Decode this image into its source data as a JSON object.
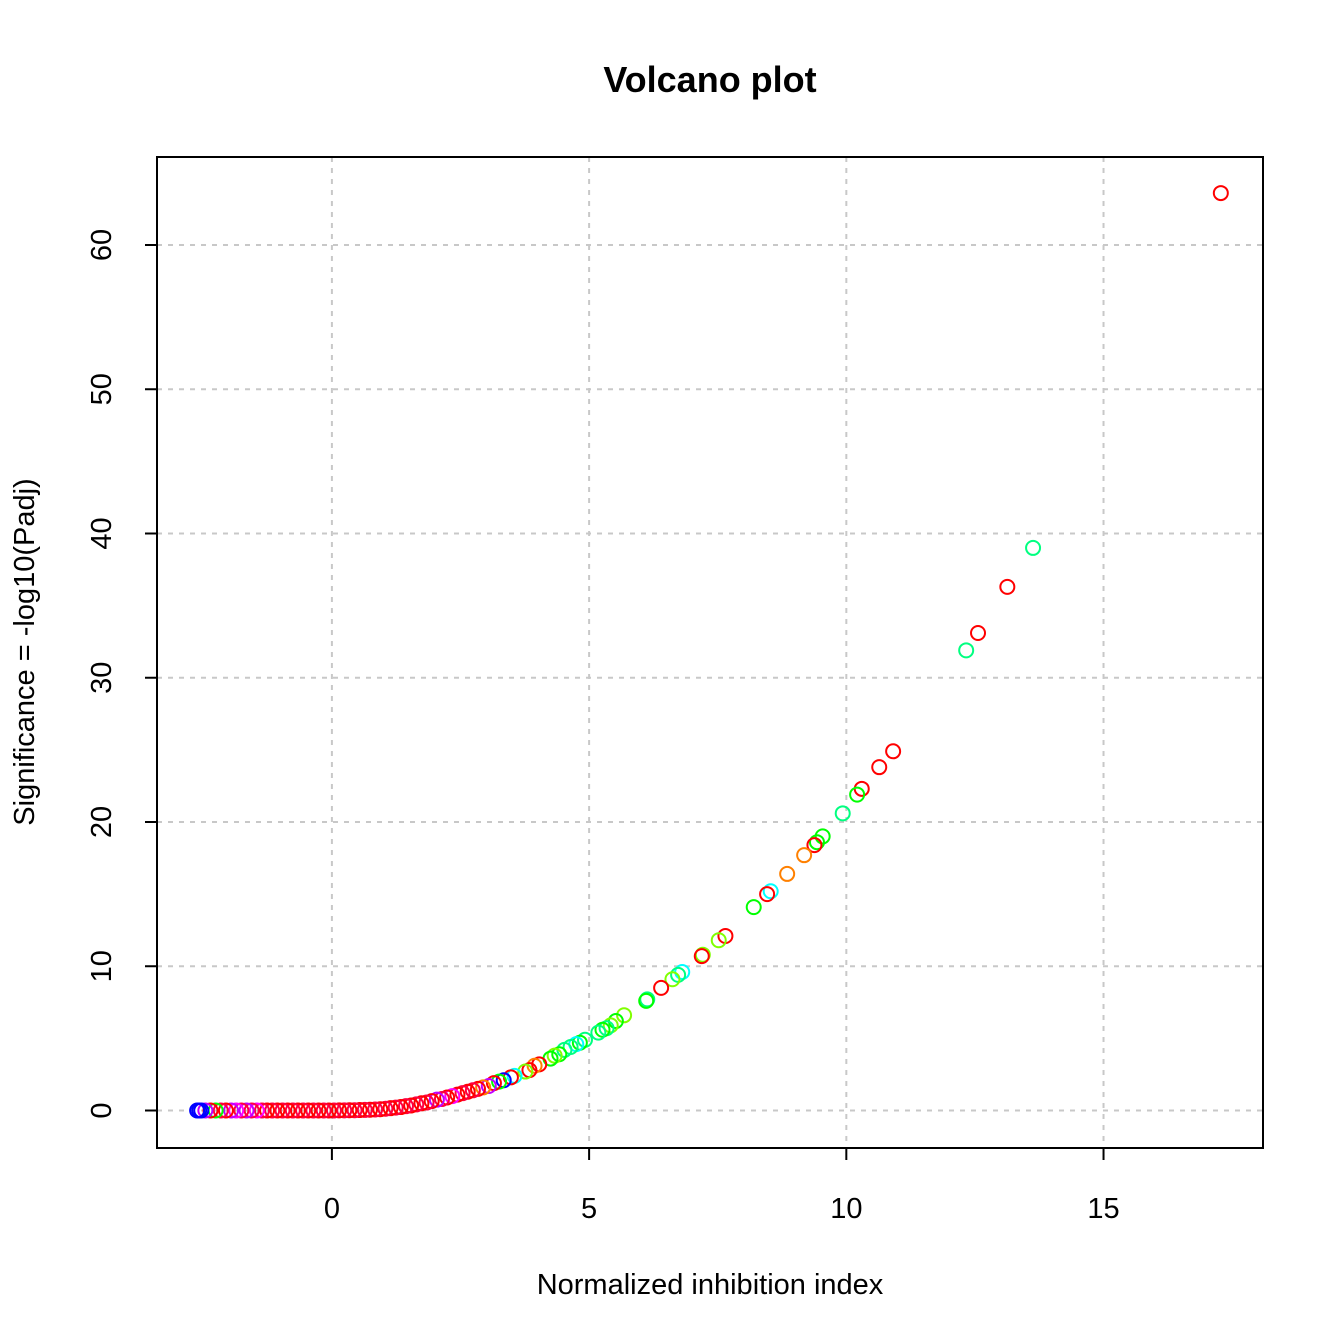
{
  "chart_data": {
    "type": "scatter",
    "title": "Volcano plot",
    "xlabel": "Normalized inhibition index",
    "ylabel": "Significance = -log10(Padj)",
    "xlim": [
      -3.4,
      18.1
    ],
    "ylim": [
      -2.6,
      66.1
    ],
    "xticks": [
      0,
      5,
      10,
      15
    ],
    "yticks": [
      0,
      10,
      20,
      30,
      40,
      50,
      60
    ],
    "grid": true,
    "marker": "open-circle",
    "colors": {
      "red": "#ff0000",
      "pink": "#ff0040",
      "magenta": "#ff00ff",
      "violet": "#c000ff",
      "blue": "#0000ff",
      "cyan": "#00ffff",
      "green": "#00ff00",
      "aqua_green": "#00ff80",
      "lime": "#80ff00",
      "orange": "#ff8000"
    },
    "points": [
      {
        "x": 17.28,
        "y": 63.6,
        "color": "red"
      },
      {
        "x": 13.63,
        "y": 39.0,
        "color": "aqua_green"
      },
      {
        "x": 13.13,
        "y": 36.3,
        "color": "red"
      },
      {
        "x": 12.56,
        "y": 33.1,
        "color": "red"
      },
      {
        "x": 12.33,
        "y": 31.9,
        "color": "aqua_green"
      },
      {
        "x": 10.91,
        "y": 24.9,
        "color": "red"
      },
      {
        "x": 10.64,
        "y": 23.8,
        "color": "red"
      },
      {
        "x": 10.3,
        "y": 22.3,
        "color": "red"
      },
      {
        "x": 10.21,
        "y": 21.9,
        "color": "green"
      },
      {
        "x": 9.93,
        "y": 20.6,
        "color": "aqua_green"
      },
      {
        "x": 9.54,
        "y": 19.0,
        "color": "green"
      },
      {
        "x": 9.43,
        "y": 18.6,
        "color": "green"
      },
      {
        "x": 9.38,
        "y": 18.4,
        "color": "red"
      },
      {
        "x": 9.18,
        "y": 17.7,
        "color": "orange"
      },
      {
        "x": 8.85,
        "y": 16.4,
        "color": "orange"
      },
      {
        "x": 8.53,
        "y": 15.2,
        "color": "cyan"
      },
      {
        "x": 8.46,
        "y": 15.0,
        "color": "red"
      },
      {
        "x": 8.2,
        "y": 14.1,
        "color": "green"
      },
      {
        "x": 7.65,
        "y": 12.1,
        "color": "red"
      },
      {
        "x": 7.52,
        "y": 11.8,
        "color": "lime"
      },
      {
        "x": 7.21,
        "y": 10.8,
        "color": "lime"
      },
      {
        "x": 7.19,
        "y": 10.7,
        "color": "red"
      },
      {
        "x": 6.81,
        "y": 9.6,
        "color": "cyan"
      },
      {
        "x": 6.73,
        "y": 9.4,
        "color": "aqua_green"
      },
      {
        "x": 6.62,
        "y": 9.1,
        "color": "lime"
      },
      {
        "x": 6.4,
        "y": 8.5,
        "color": "red"
      },
      {
        "x": 6.13,
        "y": 7.7,
        "color": "aqua_green"
      },
      {
        "x": 6.11,
        "y": 7.6,
        "color": "green"
      },
      {
        "x": 5.68,
        "y": 6.6,
        "color": "lime"
      },
      {
        "x": 5.52,
        "y": 6.2,
        "color": "green"
      },
      {
        "x": 5.42,
        "y": 5.9,
        "color": "lime"
      },
      {
        "x": 5.34,
        "y": 5.7,
        "color": "aqua_green"
      },
      {
        "x": 5.26,
        "y": 5.6,
        "color": "green"
      },
      {
        "x": 5.18,
        "y": 5.4,
        "color": "aqua_green"
      },
      {
        "x": 4.92,
        "y": 4.9,
        "color": "aqua_green"
      },
      {
        "x": 4.82,
        "y": 4.7,
        "color": "green"
      },
      {
        "x": 4.75,
        "y": 4.6,
        "color": "cyan"
      },
      {
        "x": 4.64,
        "y": 4.4,
        "color": "aqua_green"
      },
      {
        "x": 4.52,
        "y": 4.2,
        "color": "aqua_green"
      },
      {
        "x": 4.42,
        "y": 3.9,
        "color": "green"
      },
      {
        "x": 4.33,
        "y": 3.8,
        "color": "lime"
      },
      {
        "x": 4.25,
        "y": 3.6,
        "color": "green"
      },
      {
        "x": 4.03,
        "y": 3.2,
        "color": "red"
      },
      {
        "x": 3.94,
        "y": 3.1,
        "color": "orange"
      },
      {
        "x": 3.84,
        "y": 2.8,
        "color": "red"
      },
      {
        "x": 3.76,
        "y": 2.7,
        "color": "lime"
      },
      {
        "x": 3.55,
        "y": 2.4,
        "color": "cyan"
      },
      {
        "x": 3.48,
        "y": 2.3,
        "color": "red"
      },
      {
        "x": 3.34,
        "y": 2.1,
        "color": "blue"
      },
      {
        "x": 3.25,
        "y": 2.0,
        "color": "green"
      },
      {
        "x": 3.15,
        "y": 1.9,
        "color": "red"
      },
      {
        "x": 3.05,
        "y": 1.7,
        "color": "violet"
      },
      {
        "x": 2.94,
        "y": 1.6,
        "color": "orange"
      },
      {
        "x": 2.84,
        "y": 1.5,
        "color": "red"
      },
      {
        "x": 2.74,
        "y": 1.4,
        "color": "pink"
      },
      {
        "x": 2.64,
        "y": 1.3,
        "color": "red"
      },
      {
        "x": 2.54,
        "y": 1.2,
        "color": "pink"
      },
      {
        "x": 2.44,
        "y": 1.1,
        "color": "red"
      },
      {
        "x": 2.34,
        "y": 1.0,
        "color": "magenta"
      },
      {
        "x": 2.24,
        "y": 0.9,
        "color": "red"
      },
      {
        "x": 2.14,
        "y": 0.8,
        "color": "pink"
      },
      {
        "x": 2.04,
        "y": 0.75,
        "color": "violet"
      },
      {
        "x": 1.94,
        "y": 0.65,
        "color": "red"
      },
      {
        "x": 1.84,
        "y": 0.55,
        "color": "pink"
      },
      {
        "x": 1.74,
        "y": 0.5,
        "color": "red"
      },
      {
        "x": 1.64,
        "y": 0.42,
        "color": "pink"
      },
      {
        "x": 1.54,
        "y": 0.35,
        "color": "red"
      },
      {
        "x": 1.44,
        "y": 0.3,
        "color": "pink"
      },
      {
        "x": 1.34,
        "y": 0.24,
        "color": "red"
      },
      {
        "x": 1.24,
        "y": 0.2,
        "color": "pink"
      },
      {
        "x": 1.14,
        "y": 0.16,
        "color": "red"
      },
      {
        "x": 1.04,
        "y": 0.12,
        "color": "pink"
      },
      {
        "x": 0.94,
        "y": 0.09,
        "color": "red"
      },
      {
        "x": 0.84,
        "y": 0.07,
        "color": "pink"
      },
      {
        "x": 0.74,
        "y": 0.05,
        "color": "red"
      },
      {
        "x": 0.64,
        "y": 0.04,
        "color": "pink"
      },
      {
        "x": 0.54,
        "y": 0.03,
        "color": "red"
      },
      {
        "x": 0.44,
        "y": 0.02,
        "color": "pink"
      },
      {
        "x": 0.34,
        "y": 0.02,
        "color": "red"
      },
      {
        "x": 0.24,
        "y": 0.01,
        "color": "pink"
      },
      {
        "x": 0.14,
        "y": 0.01,
        "color": "red"
      },
      {
        "x": 0.04,
        "y": 0.0,
        "color": "pink"
      },
      {
        "x": -0.06,
        "y": 0.0,
        "color": "red"
      },
      {
        "x": -0.16,
        "y": 0.0,
        "color": "pink"
      },
      {
        "x": -0.26,
        "y": 0.0,
        "color": "red"
      },
      {
        "x": -0.36,
        "y": 0.0,
        "color": "pink"
      },
      {
        "x": -0.46,
        "y": 0.0,
        "color": "red"
      },
      {
        "x": -0.56,
        "y": 0.0,
        "color": "pink"
      },
      {
        "x": -0.66,
        "y": 0.0,
        "color": "red"
      },
      {
        "x": -0.76,
        "y": 0.0,
        "color": "pink"
      },
      {
        "x": -0.86,
        "y": 0.0,
        "color": "red"
      },
      {
        "x": -0.96,
        "y": 0.0,
        "color": "pink"
      },
      {
        "x": -1.06,
        "y": 0.0,
        "color": "red"
      },
      {
        "x": -1.16,
        "y": 0.0,
        "color": "pink"
      },
      {
        "x": -1.26,
        "y": 0.0,
        "color": "red"
      },
      {
        "x": -1.36,
        "y": 0.0,
        "color": "pink"
      },
      {
        "x": -1.46,
        "y": 0.0,
        "color": "magenta"
      },
      {
        "x": -1.56,
        "y": 0.0,
        "color": "pink"
      },
      {
        "x": -1.66,
        "y": 0.0,
        "color": "violet"
      },
      {
        "x": -1.76,
        "y": 0.0,
        "color": "pink"
      },
      {
        "x": -1.86,
        "y": 0.0,
        "color": "magenta"
      },
      {
        "x": -1.96,
        "y": 0.0,
        "color": "violet"
      },
      {
        "x": -2.06,
        "y": 0.0,
        "color": "red"
      },
      {
        "x": -2.16,
        "y": 0.0,
        "color": "pink"
      },
      {
        "x": -2.26,
        "y": 0.0,
        "color": "green"
      },
      {
        "x": -2.36,
        "y": 0.0,
        "color": "red"
      },
      {
        "x": -2.46,
        "y": 0.0,
        "color": "violet"
      },
      {
        "x": -2.54,
        "y": 0.0,
        "color": "blue"
      },
      {
        "x": -2.58,
        "y": 0.0,
        "color": "blue"
      },
      {
        "x": -2.62,
        "y": 0.0,
        "color": "blue"
      }
    ]
  }
}
